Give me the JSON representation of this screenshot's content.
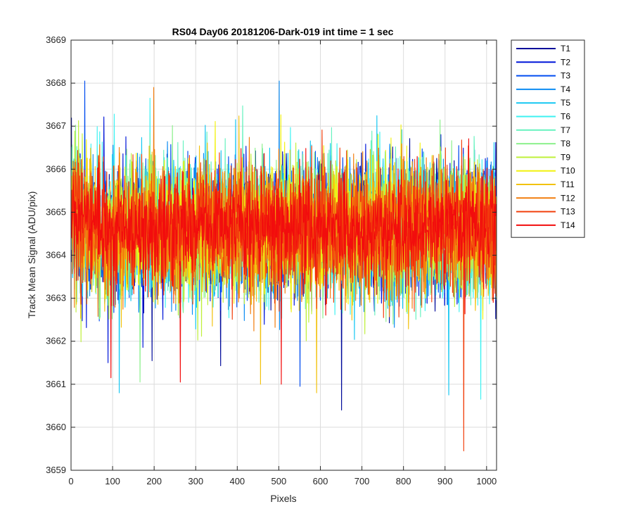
{
  "chart_data": {
    "type": "line",
    "title": "RS04 Day06 20181206-Dark-019 int time = 1 sec",
    "xlabel": "Pixels",
    "ylabel": "Track Mean Signal (ADU/pix)",
    "xlim": [
      0,
      1024
    ],
    "ylim": [
      3659,
      3669
    ],
    "xticks": [
      0,
      100,
      200,
      300,
      400,
      500,
      600,
      700,
      800,
      900,
      1000
    ],
    "yticks": [
      3659,
      3660,
      3661,
      3662,
      3663,
      3664,
      3665,
      3666,
      3667,
      3668,
      3669
    ],
    "grid": true,
    "legend_location": "outside-top-right",
    "n_points_per_series": 1024,
    "series": [
      {
        "name": "T1",
        "color": "#000a9a",
        "mean": 3664.6,
        "spread": 1.05,
        "spikes": [
          [
            650,
            3660.4
          ]
        ]
      },
      {
        "name": "T2",
        "color": "#0016d9",
        "mean": 3664.6,
        "spread": 1.05,
        "spikes": [
          [
            88,
            3661.5
          ]
        ]
      },
      {
        "name": "T3",
        "color": "#004cf0",
        "mean": 3664.6,
        "spread": 1.05,
        "spikes": [
          [
            32,
            3668.05
          ],
          [
            550,
            3660.95
          ]
        ]
      },
      {
        "name": "T4",
        "color": "#0d8cf2",
        "mean": 3664.6,
        "spread": 1.05,
        "spikes": [
          [
            500,
            3668.05
          ]
        ]
      },
      {
        "name": "T5",
        "color": "#15c7f2",
        "mean": 3664.6,
        "spread": 1.05,
        "spikes": [
          [
            115,
            3660.8
          ],
          [
            908,
            3660.75
          ]
        ]
      },
      {
        "name": "T6",
        "color": "#3ef2f2",
        "mean": 3664.6,
        "spread": 1.05,
        "spikes": [
          [
            985,
            3660.65
          ]
        ]
      },
      {
        "name": "T7",
        "color": "#66f2bf",
        "mean": 3664.6,
        "spread": 1.05,
        "spikes": []
      },
      {
        "name": "T8",
        "color": "#8cf08c",
        "mean": 3664.6,
        "spread": 1.05,
        "spikes": [
          [
            165,
            3661.05
          ]
        ]
      },
      {
        "name": "T9",
        "color": "#bff03a",
        "mean": 3664.6,
        "spread": 1.05,
        "spikes": []
      },
      {
        "name": "T10",
        "color": "#f2f20f",
        "mean": 3664.6,
        "spread": 1.05,
        "spikes": []
      },
      {
        "name": "T11",
        "color": "#f2c20f",
        "mean": 3664.6,
        "spread": 1.05,
        "spikes": [
          [
            590,
            3660.8
          ],
          [
            455,
            3661.0
          ]
        ]
      },
      {
        "name": "T12",
        "color": "#f27d0d",
        "mean": 3664.6,
        "spread": 1.05,
        "spikes": [
          [
            198,
            3667.9
          ]
        ]
      },
      {
        "name": "T13",
        "color": "#f2400d",
        "mean": 3664.6,
        "spread": 1.05,
        "spikes": [
          [
            944,
            3659.45
          ]
        ]
      },
      {
        "name": "T14",
        "color": "#f20d0d",
        "mean": 3664.6,
        "spread": 0.85,
        "spikes": [
          [
            95,
            3661.15
          ],
          [
            262,
            3661.05
          ],
          [
            505,
            3661.0
          ]
        ]
      }
    ]
  }
}
